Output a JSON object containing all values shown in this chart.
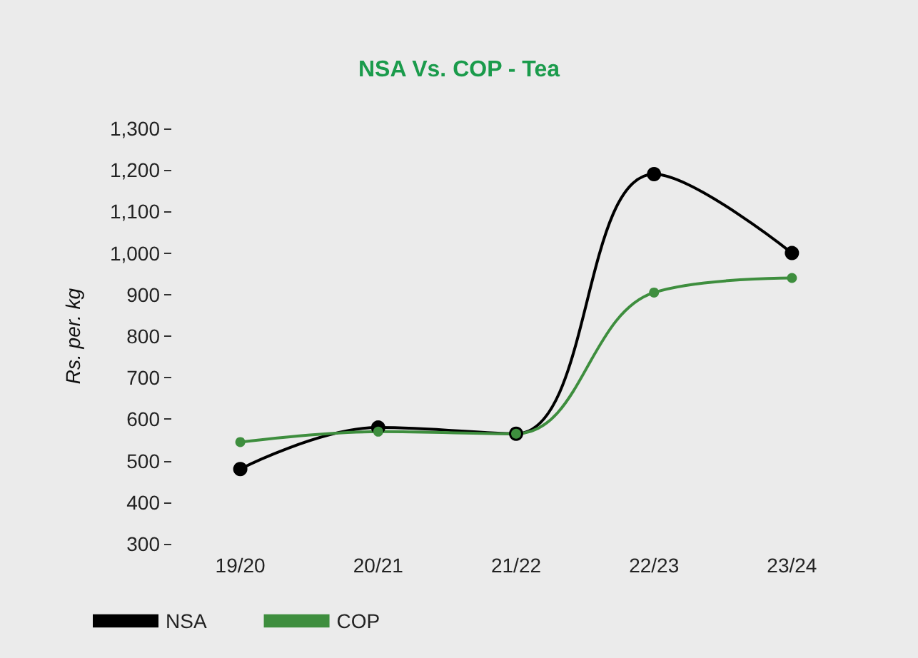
{
  "chart_data": {
    "type": "line",
    "title": "NSA Vs. COP - Tea",
    "ylabel": "Rs. per. kg",
    "categories": [
      "19/20",
      "20/21",
      "21/22",
      "22/23",
      "23/24"
    ],
    "series": [
      {
        "name": "NSA",
        "color": "#000000",
        "values": [
          480,
          580,
          565,
          1190,
          1000
        ]
      },
      {
        "name": "COP",
        "color": "#3e8e3e",
        "values": [
          545,
          570,
          565,
          905,
          940
        ]
      }
    ],
    "ylim": [
      300,
      1300
    ],
    "yticks": [
      300,
      400,
      500,
      600,
      700,
      800,
      900,
      {
        "value": 1000,
        "label": "1,000"
      },
      {
        "value": 1100,
        "label": "1,100"
      },
      {
        "value": 1200,
        "label": "1,200"
      },
      {
        "value": 1300,
        "label": "1,300"
      }
    ],
    "grid": false,
    "legend": "bottom left",
    "marker": "circle",
    "line_style": "solid"
  }
}
